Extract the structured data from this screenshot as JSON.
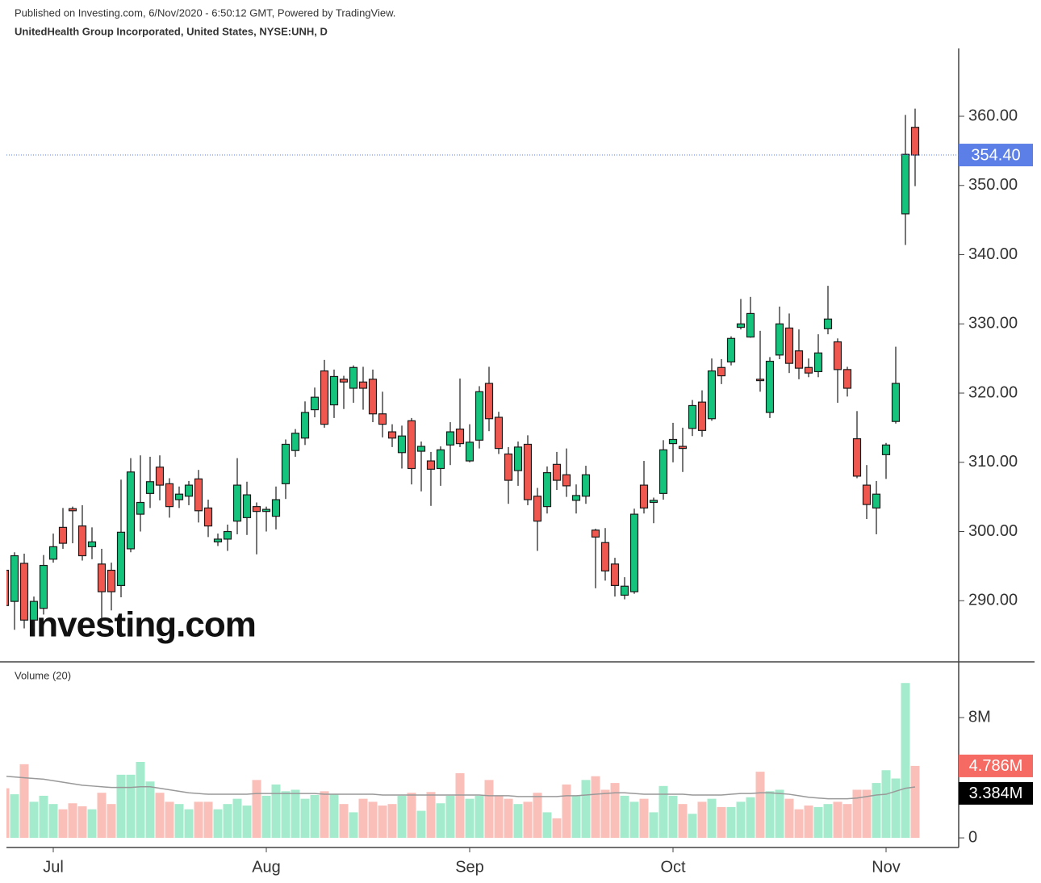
{
  "header": {
    "published": "Published on Investing.com, 6/Nov/2020 - 6:50:12 GMT, Powered by TradingView.",
    "title": "UnitedHealth Group Incorporated, United States, NYSE:UNH, D",
    "watermark": "Investing.com"
  },
  "chart_data": [
    {
      "type": "candlestick",
      "categories": [
        null,
        null,
        null,
        null,
        null,
        "Jul",
        null,
        null,
        null,
        null,
        null,
        null,
        null,
        null,
        null,
        null,
        null,
        null,
        null,
        null,
        null,
        null,
        null,
        null,
        null,
        null,
        null,
        "Aug",
        null,
        null,
        null,
        null,
        null,
        null,
        null,
        null,
        null,
        null,
        null,
        null,
        null,
        null,
        null,
        null,
        null,
        null,
        null,
        null,
        "Sep",
        null,
        null,
        null,
        null,
        null,
        null,
        null,
        null,
        null,
        null,
        null,
        null,
        null,
        null,
        null,
        null,
        null,
        null,
        null,
        null,
        "Oct",
        null,
        null,
        null,
        null,
        null,
        null,
        null,
        null,
        null,
        null,
        null,
        null,
        null,
        null,
        null,
        null,
        null,
        null,
        null,
        null,
        null,
        "Nov",
        null,
        null,
        null
      ],
      "open": [
        294.4,
        289.9,
        295.4,
        287.2,
        288.9,
        296,
        300.6,
        303.3,
        300.8,
        297.8,
        295.3,
        294.4,
        292.2,
        297.5,
        302.5,
        305.5,
        309.3,
        306.9,
        304.6,
        305.1,
        307.6,
        303.4,
        298.5,
        298.9,
        301.5,
        302,
        303.6,
        302.9,
        302.2,
        306.9,
        311.7,
        313.5,
        317.6,
        323.2,
        318.3,
        322,
        320.7,
        321.6,
        322,
        317,
        314.4,
        311.4,
        316,
        311.6,
        310.2,
        309.1,
        312.5,
        314.8,
        310.2,
        313.2,
        321.4,
        316.5,
        311.2,
        308.8,
        312.6,
        305.1,
        303.6,
        309.7,
        308.2,
        304.5,
        305.1,
        300.2,
        298.4,
        295.3,
        290.8,
        291.3,
        306.7,
        304.2,
        305.5,
        312.7,
        312.3,
        314.9,
        318.7,
        316.3,
        323.7,
        324.5,
        329.5,
        328.1,
        322,
        317.2,
        325.5,
        329.4,
        326.1,
        323.7,
        323.1,
        329.3,
        327.4,
        323.4,
        313.4,
        306.7,
        303.4,
        311.1,
        315.9,
        345.9,
        358.4
      ],
      "high": [
        295.2,
        297,
        296.8,
        290.6,
        296.6,
        299.7,
        303.4,
        303.6,
        303.8,
        300.6,
        297.5,
        295.5,
        307.5,
        310.6,
        311,
        310.8,
        311,
        307.7,
        306.5,
        307.3,
        308.9,
        304.6,
        299.7,
        301,
        310.6,
        307.2,
        304.2,
        303.6,
        306.5,
        313.3,
        314.8,
        318.8,
        320.8,
        324.8,
        323.4,
        322.5,
        324,
        323.8,
        323.4,
        320.2,
        315.5,
        315.3,
        316.4,
        313,
        311.5,
        312.3,
        315.8,
        322.1,
        315.5,
        321,
        323.8,
        317.3,
        312.2,
        313,
        313.9,
        306.3,
        309.4,
        311.5,
        312,
        306.8,
        309.5,
        300.4,
        300.5,
        296.2,
        293.4,
        303.3,
        310.2,
        304.9,
        313.2,
        315.7,
        315,
        319,
        320.4,
        325,
        324.9,
        328.2,
        333.6,
        333.9,
        329,
        325.2,
        332.5,
        331.5,
        329.2,
        325,
        328.5,
        335.5,
        327.9,
        323.8,
        317.4,
        309.6,
        307.3,
        312.8,
        326.7,
        360.2,
        361.1
      ],
      "low": [
        289,
        285.8,
        286,
        286,
        288,
        295.5,
        297.5,
        298.3,
        295.8,
        296,
        287.4,
        288.6,
        290.5,
        297,
        300,
        303.4,
        304.5,
        302,
        303.4,
        303.8,
        301.3,
        299.2,
        297.9,
        297.2,
        299.6,
        299.5,
        296.7,
        300,
        300.3,
        304.7,
        310.8,
        312.5,
        316.5,
        315,
        316.4,
        317.7,
        318.6,
        317.6,
        315.8,
        313.6,
        312.2,
        309.1,
        306.8,
        305.8,
        303.7,
        306.6,
        309.6,
        312.2,
        310,
        312,
        314.5,
        311.2,
        304,
        306.6,
        303.8,
        297.2,
        302.6,
        306,
        305,
        302.6,
        304,
        291.8,
        292.9,
        290.6,
        290.2,
        291,
        302.6,
        301.2,
        304.6,
        310,
        308.6,
        313.8,
        313.7,
        316,
        321.3,
        324,
        329.2,
        328,
        320.2,
        316.4,
        324.9,
        322.9,
        322,
        322.3,
        322.3,
        328.5,
        318.6,
        319.5,
        307.7,
        301.8,
        299.6,
        307.6,
        315.6,
        341.4,
        349.9
      ],
      "close": [
        289.3,
        296.5,
        287.2,
        289.9,
        295.1,
        297.8,
        298.3,
        303,
        296.5,
        298.5,
        291.3,
        291.3,
        299.9,
        308.6,
        304.2,
        307.2,
        306.7,
        303.6,
        305.4,
        306.7,
        303,
        300.8,
        298.9,
        300,
        306.7,
        305.3,
        302.9,
        303.2,
        304.6,
        312.6,
        314.2,
        317.2,
        319.4,
        315.5,
        322.4,
        321.6,
        323.7,
        320.7,
        317,
        315.5,
        313.5,
        313.8,
        309.1,
        312.3,
        309,
        311.8,
        314.4,
        312.7,
        312.9,
        320.2,
        316.3,
        312,
        307.4,
        312.2,
        304.6,
        301.5,
        308.5,
        307.4,
        306.6,
        305.2,
        308.2,
        299.2,
        294.3,
        292.2,
        292.1,
        302.5,
        303.4,
        304.5,
        311.8,
        313.3,
        312,
        318.2,
        314.6,
        323.2,
        322.5,
        327.9,
        330,
        331.5,
        321.8,
        324.6,
        330,
        324.3,
        323.6,
        322.9,
        325.8,
        330.7,
        323.4,
        320.7,
        308,
        303.9,
        305.4,
        312.5,
        321.4,
        354.5,
        354.4
      ],
      "up_color": "#14c47c",
      "down_color": "#f0584f",
      "ylim": [
        281.4,
        369.8
      ],
      "yticks": [
        {
          "value": 290,
          "label": "290.00"
        },
        {
          "value": 300,
          "label": "300.00"
        },
        {
          "value": 310,
          "label": "310.00"
        },
        {
          "value": 320,
          "label": "320.00"
        },
        {
          "value": 330,
          "label": "330.00"
        },
        {
          "value": 340,
          "label": "340.00"
        },
        {
          "value": 350,
          "label": "350.00"
        },
        {
          "value": 360,
          "label": "360.00"
        }
      ],
      "last_price": {
        "value": 354.4,
        "label": "354.40",
        "color": "#5b7fe6"
      }
    },
    {
      "type": "bar",
      "title": "Volume (20)",
      "values": [
        3.3,
        2.9,
        4.9,
        2.4,
        2.8,
        2.25,
        1.9,
        2.3,
        2.1,
        1.9,
        3.0,
        2.25,
        4.2,
        4.2,
        5.05,
        3.75,
        3.0,
        2.4,
        2.25,
        1.9,
        2.4,
        2.4,
        1.9,
        2.25,
        2.6,
        2.15,
        3.85,
        2.8,
        3.55,
        3.1,
        3.2,
        2.6,
        2.85,
        3.1,
        2.9,
        2.25,
        1.7,
        2.6,
        2.4,
        2.15,
        2.25,
        2.8,
        3.0,
        1.8,
        3.05,
        2.3,
        2.8,
        4.3,
        2.6,
        2.8,
        3.85,
        2.8,
        2.6,
        2.25,
        2.4,
        3.0,
        1.7,
        1.3,
        3.55,
        2.8,
        3.85,
        4.1,
        3.2,
        3.65,
        2.8,
        2.4,
        2.6,
        1.7,
        3.45,
        2.8,
        2.25,
        1.6,
        2.4,
        2.6,
        2.05,
        2.05,
        2.4,
        2.7,
        4.4,
        3.1,
        3.2,
        2.6,
        1.9,
        2.15,
        2.05,
        2.25,
        2.4,
        2.25,
        3.2,
        3.2,
        3.65,
        4.5,
        3.95,
        10.3,
        4.786
      ],
      "up_color": "#a4ebcd",
      "down_color": "#fbbfba",
      "last_value": {
        "value": 4.786,
        "label": "4.786M",
        "color": "#f56b63"
      },
      "ma": {
        "color": "#999999",
        "values": [
          4.1,
          4.05,
          4.0,
          3.95,
          3.9,
          3.8,
          3.7,
          3.6,
          3.5,
          3.45,
          3.4,
          3.35,
          3.35,
          3.35,
          3.4,
          3.4,
          3.3,
          3.2,
          3.1,
          3.0,
          2.95,
          2.9,
          2.9,
          2.9,
          2.9,
          2.9,
          2.95,
          2.95,
          2.95,
          2.95,
          2.95,
          2.95,
          2.95,
          2.9,
          2.9,
          2.9,
          2.9,
          2.9,
          2.9,
          2.85,
          2.85,
          2.85,
          2.85,
          2.85,
          2.85,
          2.85,
          2.85,
          2.85,
          2.85,
          2.85,
          2.8,
          2.8,
          2.8,
          2.75,
          2.75,
          2.75,
          2.75,
          2.75,
          2.8,
          2.8,
          2.85,
          2.9,
          2.95,
          3.0,
          3.0,
          2.95,
          2.9,
          2.9,
          2.9,
          2.9,
          2.9,
          2.85,
          2.85,
          2.85,
          2.85,
          2.9,
          2.95,
          2.95,
          3.0,
          3.0,
          2.95,
          2.9,
          2.8,
          2.7,
          2.65,
          2.6,
          2.6,
          2.6,
          2.65,
          2.75,
          2.85,
          2.9,
          3.1,
          3.3,
          3.384
        ],
        "last": {
          "value": 3.384,
          "label": "3.384M",
          "color": "#000000"
        }
      },
      "ylim": [
        -0.64,
        11.6
      ],
      "yticks": [
        0,
        {
          "value": 8,
          "label": "8M"
        }
      ]
    }
  ]
}
